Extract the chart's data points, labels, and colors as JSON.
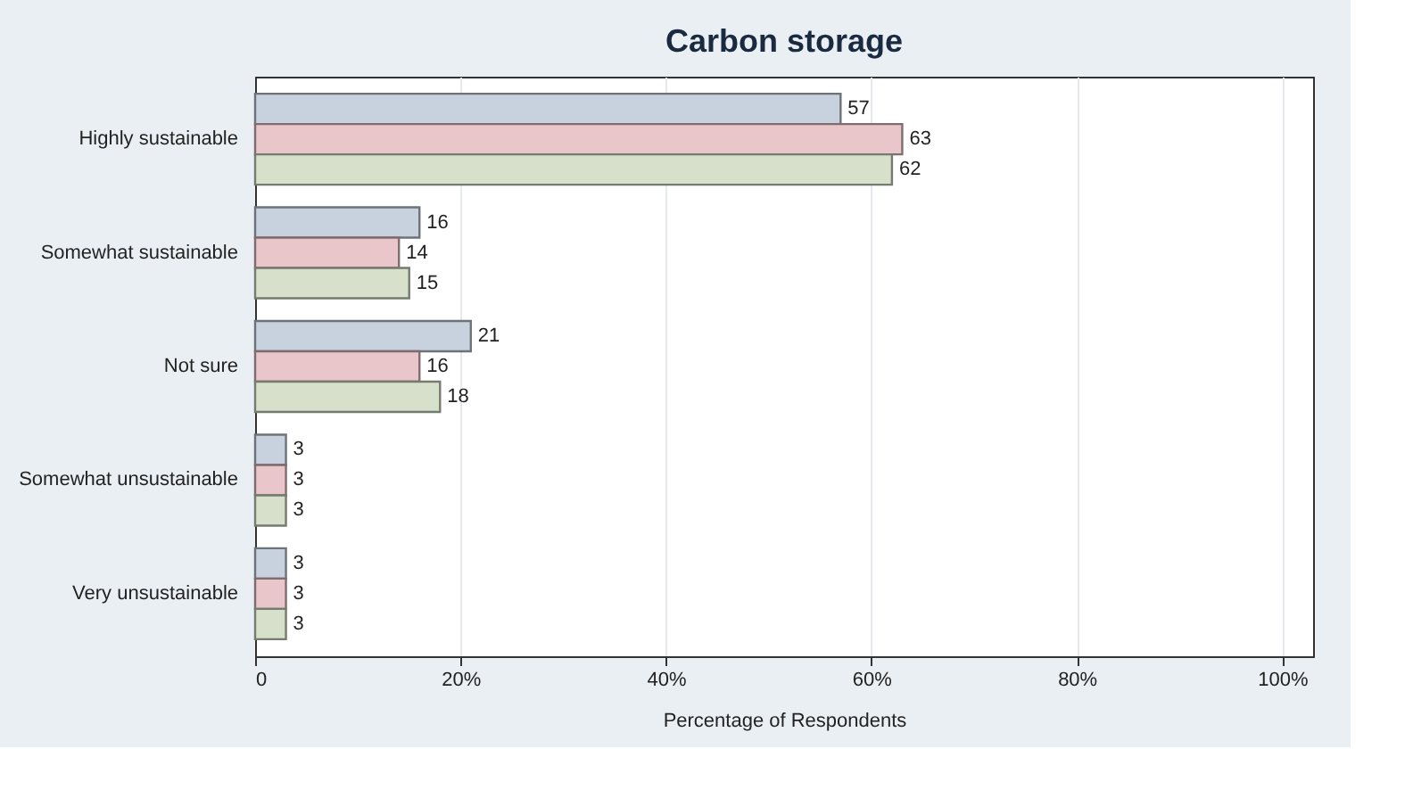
{
  "chart_data": {
    "type": "bar",
    "orientation": "horizontal",
    "title": "Carbon storage",
    "xlabel": "Percentage of Respondents",
    "categories": [
      "Highly sustainable",
      "Somewhat sustainable",
      "Not sure",
      "Somewhat unsustainable",
      "Very unsustainable"
    ],
    "series": [
      {
        "color": "#c8d2de",
        "values": [
          57,
          16,
          21,
          3,
          3
        ]
      },
      {
        "color": "#e9c6ca",
        "values": [
          63,
          14,
          16,
          3,
          3
        ]
      },
      {
        "color": "#d6e0cb",
        "values": [
          62,
          15,
          18,
          3,
          3
        ]
      }
    ],
    "xlim": [
      0,
      103
    ],
    "xticks": [
      0,
      {
        "value": 20,
        "label": "20%"
      },
      {
        "value": 40,
        "label": "40%"
      },
      {
        "value": 60,
        "label": "60%"
      },
      {
        "value": 80,
        "label": "80%"
      },
      {
        "value": 100,
        "label": "100%"
      }
    ],
    "grid": "x",
    "data_labels": true,
    "legend": false
  }
}
